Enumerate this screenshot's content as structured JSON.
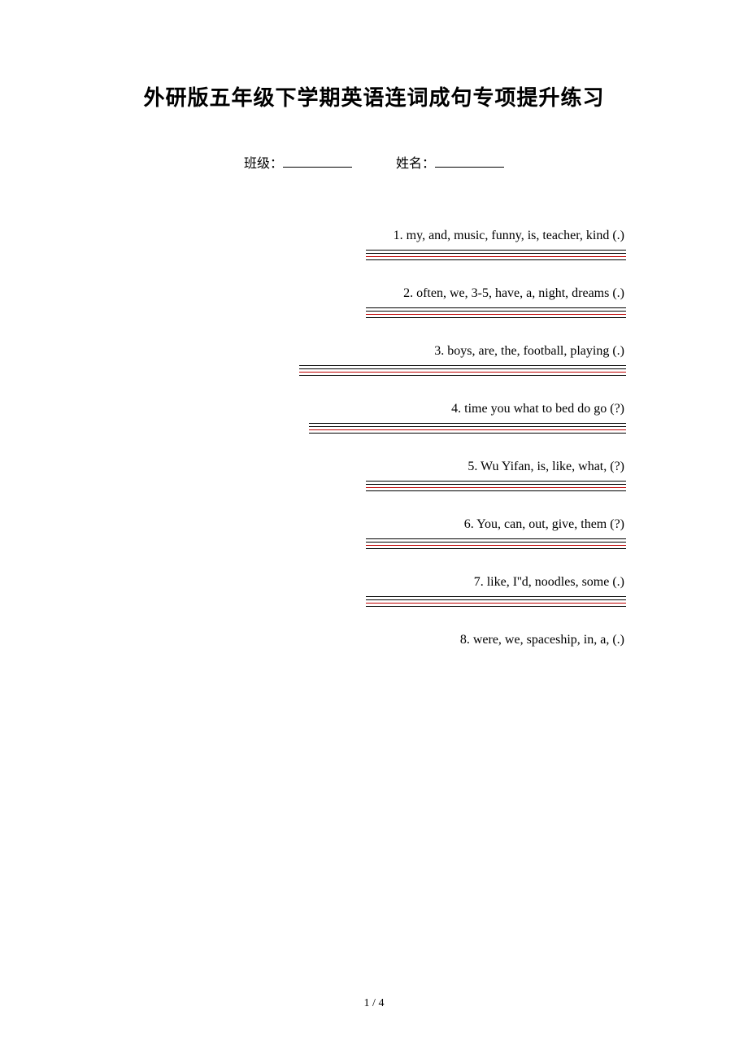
{
  "title": "外研版五年级下学期英语连词成句专项提升练习",
  "labels": {
    "class": "班级：",
    "name": "姓名："
  },
  "questions": [
    {
      "text": "1. my, and, music, funny, is, teacher, kind (.)",
      "line_width_class": "line-w1"
    },
    {
      "text": "2. often, we, 3-5, have, a, night, dreams (.)",
      "line_width_class": "line-w1"
    },
    {
      "text": "3. boys, are, the, football, playing (.)",
      "line_width_class": "line-w2"
    },
    {
      "text": "4. time you what to bed do go (?)",
      "line_width_class": "line-w3"
    },
    {
      "text": "5. Wu Yifan, is, like, what, (?)",
      "line_width_class": "line-w1"
    },
    {
      "text": "6. You, can, out, give, them (?)",
      "line_width_class": "line-w1"
    },
    {
      "text": "7. like, I''d, noodles, some (.)",
      "line_width_class": "line-w1"
    },
    {
      "text": "8. were, we, spaceship, in, a, (.)",
      "line_width_class": null
    }
  ],
  "page_number": "1 / 4",
  "colors": {
    "text": "#000000",
    "red_line": "#c00000",
    "background": "#ffffff"
  }
}
